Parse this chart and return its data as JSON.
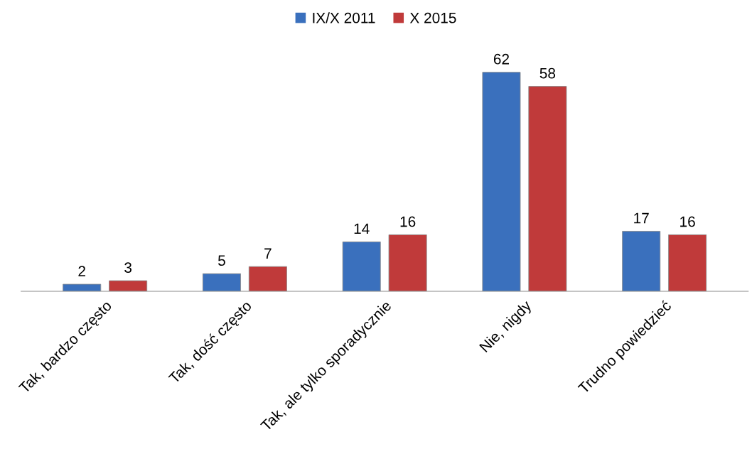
{
  "chart_data": {
    "type": "bar",
    "categories": [
      "Tak, bardzo często",
      "Tak, dość często",
      "Tak, ale tylko sporadycznie",
      "Nie, nigdy",
      "Trudno powiedzieć"
    ],
    "series": [
      {
        "name": "IX/X 2011",
        "color": "#3a70bd",
        "values": [
          2,
          5,
          14,
          62,
          17
        ]
      },
      {
        "name": "X 2015",
        "color": "#c03a3a",
        "values": [
          3,
          7,
          16,
          58,
          16
        ]
      }
    ],
    "data_labels": true,
    "legend": "top",
    "grid": false
  }
}
